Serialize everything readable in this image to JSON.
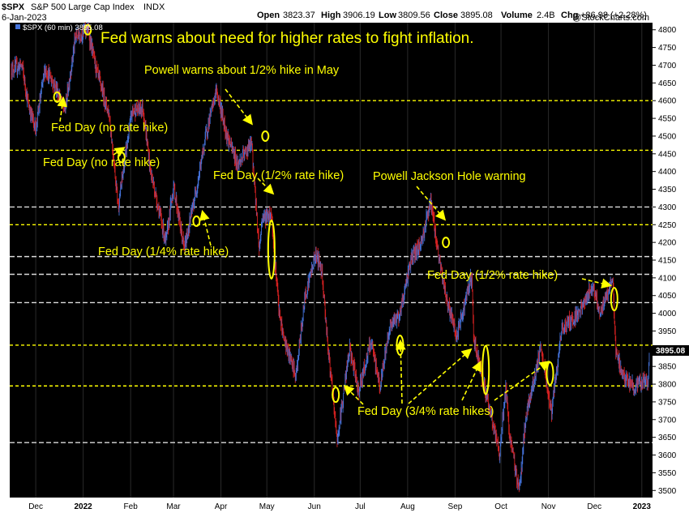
{
  "header": {
    "symbol": "$SPX",
    "name": "S&P 500 Large Cap Index",
    "exchange": "INDX",
    "date": "6-Jan-2023",
    "open_label": "Open",
    "open": "3823.37",
    "high_label": "High",
    "high": "3906.19",
    "low_label": "Low",
    "low": "3809.56",
    "close_label": "Close",
    "close": "3895.08",
    "volume_label": "Volume",
    "volume": "2.4B",
    "chg_label": "Chg",
    "chg": "+86.98 (+2.28%)",
    "watermark": "@StockCharts.com"
  },
  "legend": {
    "text": "$SPX (60 min) 3895.08"
  },
  "last_price_label": "3895.08",
  "colors": {
    "background": "#000000",
    "up": "#4472d9",
    "down": "#d42020",
    "annotation": "#ffff00",
    "white_line": "#dcdcdc",
    "price_tag": "#000000"
  },
  "chart_data": {
    "type": "candlestick",
    "interval": "60 min",
    "ylim": [
      3480,
      4820
    ],
    "y_ticks": [
      3500,
      3550,
      3600,
      3650,
      3700,
      3750,
      3800,
      3850,
      3900,
      3950,
      4000,
      4050,
      4100,
      4150,
      4200,
      4250,
      4300,
      4350,
      4400,
      4450,
      4500,
      4550,
      4600,
      4650,
      4700,
      4750,
      4800
    ],
    "x_ticks": [
      "Dec",
      "2022",
      "Feb",
      "Mar",
      "Apr",
      "May",
      "Jun",
      "Jul",
      "Aug",
      "Sep",
      "Oct",
      "Nov",
      "Dec",
      "2023"
    ],
    "x_domain": [
      "2021-11-14",
      "2023-01-08"
    ],
    "x_tick_dates": [
      "2021-12-01",
      "2022-01-01",
      "2022-02-01",
      "2022-03-01",
      "2022-04-01",
      "2022-05-01",
      "2022-06-01",
      "2022-07-01",
      "2022-08-01",
      "2022-09-01",
      "2022-10-01",
      "2022-11-01",
      "2022-12-01",
      "2023-01-01"
    ],
    "series_path": [
      [
        "2021-11-15",
        4690
      ],
      [
        "2021-11-22",
        4700
      ],
      [
        "2021-11-26",
        4590
      ],
      [
        "2021-12-01",
        4520
      ],
      [
        "2021-12-07",
        4690
      ],
      [
        "2021-12-14",
        4640
      ],
      [
        "2021-12-20",
        4570
      ],
      [
        "2021-12-27",
        4780
      ],
      [
        "2022-01-04",
        4800
      ],
      [
        "2022-01-10",
        4680
      ],
      [
        "2022-01-18",
        4560
      ],
      [
        "2022-01-24",
        4300
      ],
      [
        "2022-01-28",
        4430
      ],
      [
        "2022-02-02",
        4570
      ],
      [
        "2022-02-09",
        4580
      ],
      [
        "2022-02-14",
        4400
      ],
      [
        "2022-02-24",
        4200
      ],
      [
        "2022-03-01",
        4360
      ],
      [
        "2022-03-08",
        4180
      ],
      [
        "2022-03-16",
        4350
      ],
      [
        "2022-03-22",
        4500
      ],
      [
        "2022-03-29",
        4630
      ],
      [
        "2022-04-05",
        4500
      ],
      [
        "2022-04-12",
        4420
      ],
      [
        "2022-04-21",
        4480
      ],
      [
        "2022-04-26",
        4180
      ],
      [
        "2022-04-28",
        4270
      ],
      [
        "2022-05-04",
        4280
      ],
      [
        "2022-05-09",
        4000
      ],
      [
        "2022-05-12",
        3930
      ],
      [
        "2022-05-20",
        3820
      ],
      [
        "2022-05-26",
        4050
      ],
      [
        "2022-06-02",
        4170
      ],
      [
        "2022-06-06",
        4120
      ],
      [
        "2022-06-10",
        3900
      ],
      [
        "2022-06-16",
        3640
      ],
      [
        "2022-06-24",
        3900
      ],
      [
        "2022-06-30",
        3780
      ],
      [
        "2022-07-08",
        3920
      ],
      [
        "2022-07-14",
        3790
      ],
      [
        "2022-07-20",
        3960
      ],
      [
        "2022-07-27",
        4000
      ],
      [
        "2022-08-03",
        4150
      ],
      [
        "2022-08-10",
        4200
      ],
      [
        "2022-08-16",
        4320
      ],
      [
        "2022-08-22",
        4140
      ],
      [
        "2022-08-26",
        4050
      ],
      [
        "2022-09-02",
        3930
      ],
      [
        "2022-09-12",
        4110
      ],
      [
        "2022-09-13",
        3930
      ],
      [
        "2022-09-22",
        3760
      ],
      [
        "2022-09-30",
        3600
      ],
      [
        "2022-10-04",
        3790
      ],
      [
        "2022-10-07",
        3640
      ],
      [
        "2022-10-13",
        3500
      ],
      [
        "2022-10-17",
        3700
      ],
      [
        "2022-10-27",
        3900
      ],
      [
        "2022-11-03",
        3720
      ],
      [
        "2022-11-10",
        3960
      ],
      [
        "2022-11-16",
        3980
      ],
      [
        "2022-11-22",
        4010
      ],
      [
        "2022-11-30",
        4080
      ],
      [
        "2022-12-05",
        4000
      ],
      [
        "2022-12-13",
        4100
      ],
      [
        "2022-12-15",
        3890
      ],
      [
        "2022-12-20",
        3820
      ],
      [
        "2022-12-28",
        3790
      ],
      [
        "2023-01-03",
        3810
      ],
      [
        "2023-01-05",
        3810
      ],
      [
        "2023-01-06",
        3895
      ]
    ],
    "yellow_levels": [
      4600,
      4460,
      4250,
      3910,
      3795
    ],
    "white_levels": [
      4300,
      4160,
      4110,
      4030,
      3635
    ],
    "annotations": [
      {
        "text": "Fed warns about need for higher rates to fight inflation.",
        "style": "big"
      },
      {
        "text": "Powell warns about 1/2% hike in May"
      },
      {
        "text": "Fed Day (no rate hike)"
      },
      {
        "text": "Fed Day (no rate hike)"
      },
      {
        "text": "Fed Day (1/2% rate hike)"
      },
      {
        "text": "Powell Jackson Hole warning"
      },
      {
        "text": "Fed Day (1/4% rate hike)"
      },
      {
        "text": "Fed Day (1/2% rate hike)"
      },
      {
        "text": "Fed Day (3/4% rate hikes)"
      }
    ]
  }
}
